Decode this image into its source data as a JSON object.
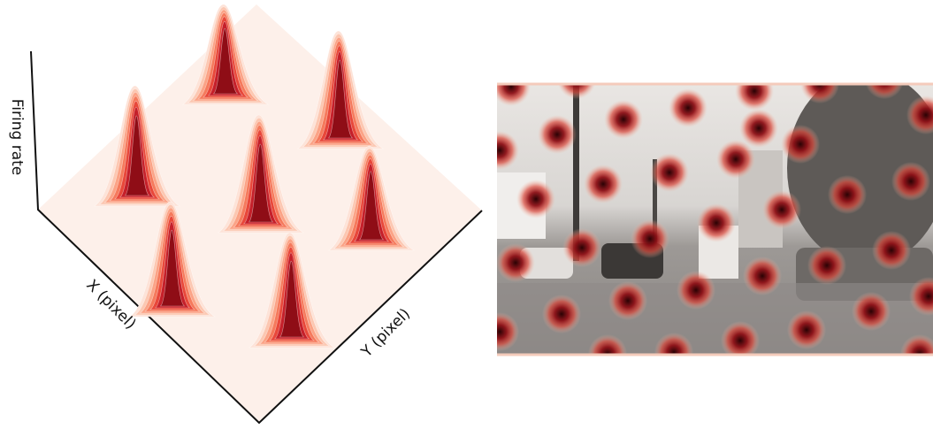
{
  "surface_plot": {
    "z_label": "Firing rate",
    "x_label": "X (pixel)",
    "y_label": "Y (pixel)"
  }
}
